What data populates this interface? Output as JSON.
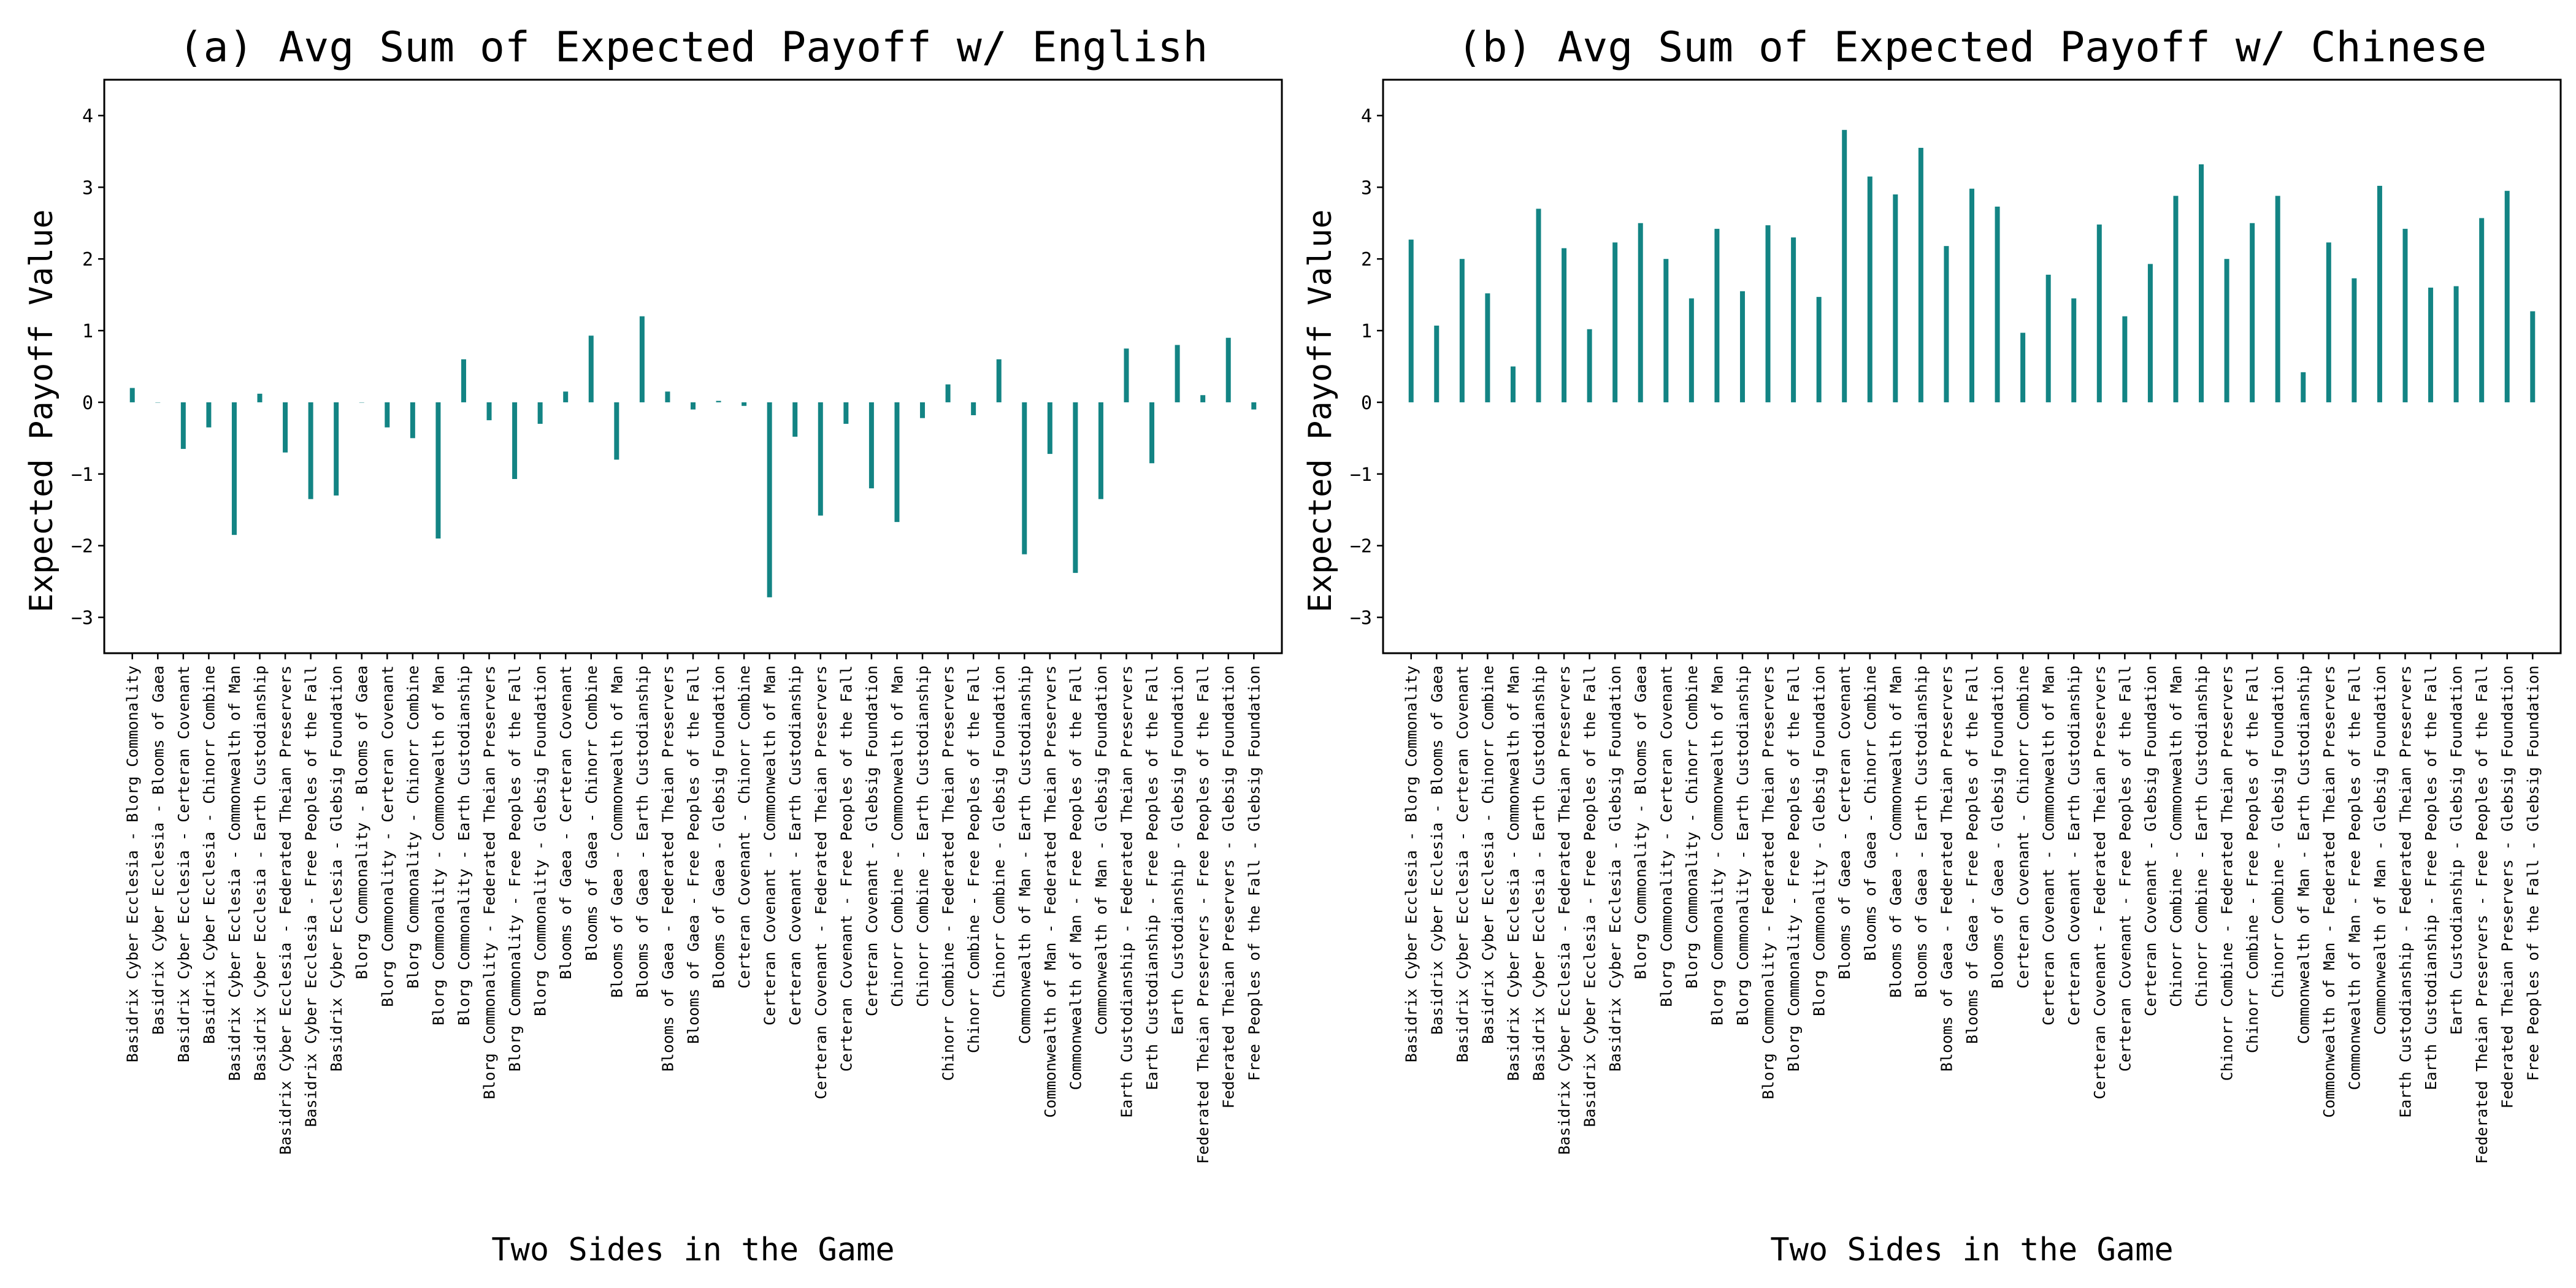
{
  "chart_data": [
    {
      "type": "bar",
      "title": "(a) Avg Sum of Expected Payoff w/ English",
      "xlabel": "Two Sides in the Game",
      "ylabel": "Expected Payoff Value",
      "ylim": [
        -3.5,
        4.5
      ],
      "yticks": [
        -3,
        -2,
        -1,
        0,
        1,
        2,
        3,
        4
      ],
      "grid": false,
      "color": "#138484",
      "categories": [
        "Basidrix Cyber Ecclesia - Blorg Commonality",
        "Basidrix Cyber Ecclesia - Blooms of Gaea",
        "Basidrix Cyber Ecclesia - Certeran Covenant",
        "Basidrix Cyber Ecclesia - Chinorr Combine",
        "Basidrix Cyber Ecclesia - Commonwealth of Man",
        "Basidrix Cyber Ecclesia - Earth Custodianship",
        "Basidrix Cyber Ecclesia - Federated Theian Preservers",
        "Basidrix Cyber Ecclesia - Free Peoples of the Fall",
        "Basidrix Cyber Ecclesia - Glebsig Foundation",
        "Blorg Commonality - Blooms of Gaea",
        "Blorg Commonality - Certeran Covenant",
        "Blorg Commonality - Chinorr Combine",
        "Blorg Commonality - Commonwealth of Man",
        "Blorg Commonality - Earth Custodianship",
        "Blorg Commonality - Federated Theian Preservers",
        "Blorg Commonality - Free Peoples of the Fall",
        "Blorg Commonality - Glebsig Foundation",
        "Blooms of Gaea - Certeran Covenant",
        "Blooms of Gaea - Chinorr Combine",
        "Blooms of Gaea - Commonwealth of Man",
        "Blooms of Gaea - Earth Custodianship",
        "Blooms of Gaea - Federated Theian Preservers",
        "Blooms of Gaea - Free Peoples of the Fall",
        "Blooms of Gaea - Glebsig Foundation",
        "Certeran Covenant - Chinorr Combine",
        "Certeran Covenant - Commonwealth of Man",
        "Certeran Covenant - Earth Custodianship",
        "Certeran Covenant - Federated Theian Preservers",
        "Certeran Covenant - Free Peoples of the Fall",
        "Certeran Covenant - Glebsig Foundation",
        "Chinorr Combine - Commonwealth of Man",
        "Chinorr Combine - Earth Custodianship",
        "Chinorr Combine - Federated Theian Preservers",
        "Chinorr Combine - Free Peoples of the Fall",
        "Chinorr Combine - Glebsig Foundation",
        "Commonwealth of Man - Earth Custodianship",
        "Commonwealth of Man - Federated Theian Preservers",
        "Commonwealth of Man - Free Peoples of the Fall",
        "Commonwealth of Man - Glebsig Foundation",
        "Earth Custodianship - Federated Theian Preservers",
        "Earth Custodianship - Free Peoples of the Fall",
        "Earth Custodianship - Glebsig Foundation",
        "Federated Theian Preservers - Free Peoples of the Fall",
        "Federated Theian Preservers - Glebsig Foundation",
        "Free Peoples of the Fall - Glebsig Foundation"
      ],
      "values": [
        0.2,
        0.0,
        -0.65,
        -0.35,
        -1.85,
        0.12,
        -0.7,
        -1.35,
        -1.3,
        0.0,
        -0.35,
        -0.5,
        -1.9,
        0.6,
        -0.25,
        -1.07,
        -0.3,
        0.15,
        0.93,
        -0.8,
        1.2,
        0.15,
        -0.1,
        0.02,
        -0.05,
        -2.72,
        -0.48,
        -1.58,
        -0.3,
        -1.2,
        -1.67,
        -0.22,
        0.25,
        -0.18,
        0.6,
        -2.12,
        -0.72,
        -2.38,
        -1.35,
        0.75,
        -0.85,
        0.8,
        0.1,
        0.9,
        -0.1
      ]
    },
    {
      "type": "bar",
      "title": "(b) Avg Sum of Expected Payoff w/ Chinese",
      "xlabel": "Two Sides in the Game",
      "ylabel": "Expected Payoff Value",
      "ylim": [
        -3.5,
        4.5
      ],
      "yticks": [
        -3,
        -2,
        -1,
        0,
        1,
        2,
        3,
        4
      ],
      "grid": false,
      "color": "#138484",
      "categories": [
        "Basidrix Cyber Ecclesia - Blorg Commonality",
        "Basidrix Cyber Ecclesia - Blooms of Gaea",
        "Basidrix Cyber Ecclesia - Certeran Covenant",
        "Basidrix Cyber Ecclesia - Chinorr Combine",
        "Basidrix Cyber Ecclesia - Commonwealth of Man",
        "Basidrix Cyber Ecclesia - Earth Custodianship",
        "Basidrix Cyber Ecclesia - Federated Theian Preservers",
        "Basidrix Cyber Ecclesia - Free Peoples of the Fall",
        "Basidrix Cyber Ecclesia - Glebsig Foundation",
        "Blorg Commonality - Blooms of Gaea",
        "Blorg Commonality - Certeran Covenant",
        "Blorg Commonality - Chinorr Combine",
        "Blorg Commonality - Commonwealth of Man",
        "Blorg Commonality - Earth Custodianship",
        "Blorg Commonality - Federated Theian Preservers",
        "Blorg Commonality - Free Peoples of the Fall",
        "Blorg Commonality - Glebsig Foundation",
        "Blooms of Gaea - Certeran Covenant",
        "Blooms of Gaea - Chinorr Combine",
        "Blooms of Gaea - Commonwealth of Man",
        "Blooms of Gaea - Earth Custodianship",
        "Blooms of Gaea - Federated Theian Preservers",
        "Blooms of Gaea - Free Peoples of the Fall",
        "Blooms of Gaea - Glebsig Foundation",
        "Certeran Covenant - Chinorr Combine",
        "Certeran Covenant - Commonwealth of Man",
        "Certeran Covenant - Earth Custodianship",
        "Certeran Covenant - Federated Theian Preservers",
        "Certeran Covenant - Free Peoples of the Fall",
        "Certeran Covenant - Glebsig Foundation",
        "Chinorr Combine - Commonwealth of Man",
        "Chinorr Combine - Earth Custodianship",
        "Chinorr Combine - Federated Theian Preservers",
        "Chinorr Combine - Free Peoples of the Fall",
        "Chinorr Combine - Glebsig Foundation",
        "Commonwealth of Man - Earth Custodianship",
        "Commonwealth of Man - Federated Theian Preservers",
        "Commonwealth of Man - Free Peoples of the Fall",
        "Commonwealth of Man - Glebsig Foundation",
        "Earth Custodianship - Federated Theian Preservers",
        "Earth Custodianship - Free Peoples of the Fall",
        "Earth Custodianship - Glebsig Foundation",
        "Federated Theian Preservers - Free Peoples of the Fall",
        "Federated Theian Preservers - Glebsig Foundation",
        "Free Peoples of the Fall - Glebsig Foundation"
      ],
      "values": [
        2.27,
        1.07,
        2.0,
        1.52,
        0.5,
        2.7,
        2.15,
        1.02,
        2.23,
        2.5,
        2.0,
        1.45,
        2.42,
        1.55,
        2.47,
        2.3,
        1.47,
        3.8,
        3.15,
        2.9,
        3.55,
        2.18,
        2.98,
        2.73,
        0.97,
        1.78,
        1.45,
        2.48,
        1.2,
        1.93,
        2.88,
        3.32,
        2.0,
        2.5,
        2.88,
        0.42,
        2.23,
        1.73,
        3.02,
        2.42,
        1.6,
        1.62,
        2.57,
        2.95,
        1.27
      ]
    }
  ]
}
